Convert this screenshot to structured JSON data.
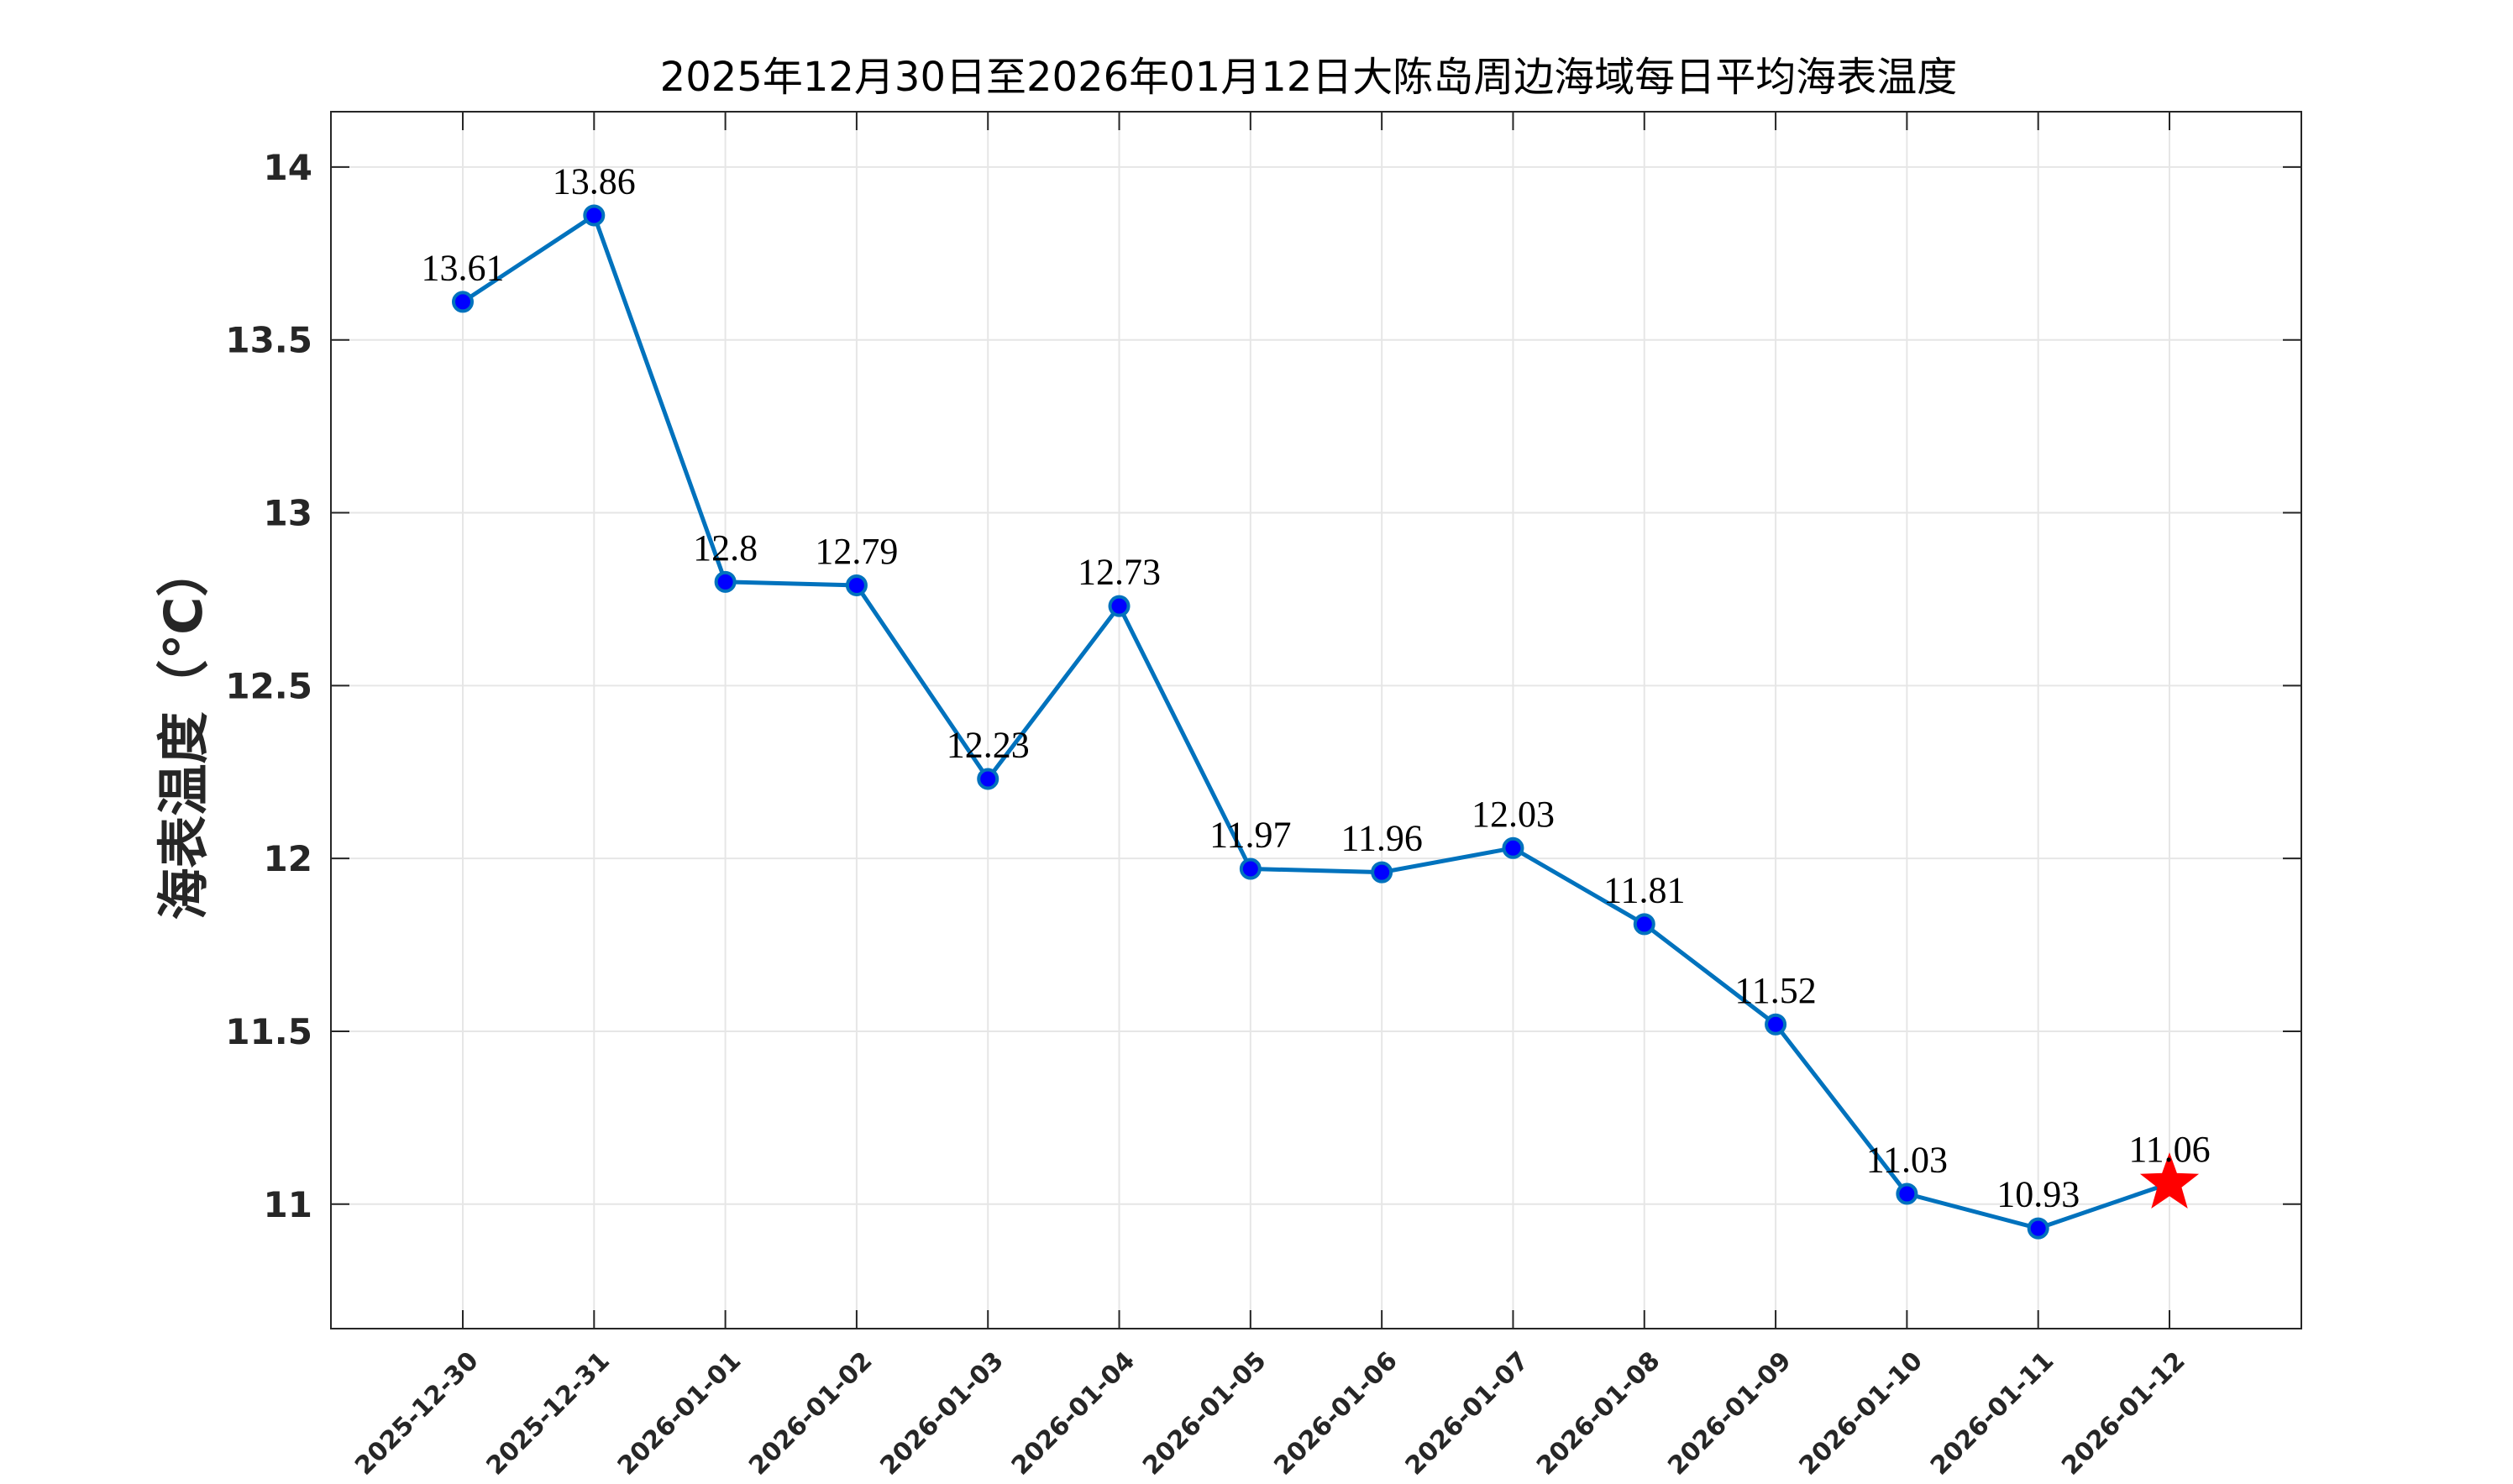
{
  "chart_data": {
    "type": "line",
    "title": "2025年12月30日至2026年01月12日大陈岛周边海域每日平均海表温度",
    "xlabel": "",
    "ylabel": "海表温度（℃）",
    "categories": [
      "2025-12-30",
      "2025-12-31",
      "2026-01-01",
      "2026-01-02",
      "2026-01-03",
      "2026-01-04",
      "2026-01-05",
      "2026-01-06",
      "2026-01-07",
      "2026-01-08",
      "2026-01-09",
      "2026-01-10",
      "2026-01-11",
      "2026-01-12"
    ],
    "values": [
      13.61,
      13.86,
      12.8,
      12.79,
      12.23,
      12.73,
      11.97,
      11.96,
      12.03,
      11.81,
      11.52,
      11.03,
      10.93,
      11.06
    ],
    "data_labels": [
      "13.61",
      "13.86",
      "12.8",
      "12.79",
      "12.23",
      "12.73",
      "11.97",
      "11.96",
      "12.03",
      "11.81",
      "11.52",
      "11.03",
      "10.93",
      "11.06"
    ],
    "ylim": [
      10.64,
      14.16
    ],
    "yticks": [
      11,
      11.5,
      12,
      12.5,
      13,
      13.5,
      14
    ],
    "ytick_labels": [
      "11",
      "11.5",
      "12",
      "12.5",
      "13",
      "13.5",
      "14"
    ],
    "grid": true,
    "series_color": "#0072BD",
    "marker_color": "#0000ff",
    "highlight_last_point": "red-star",
    "highlight_color": "#ff0000"
  }
}
